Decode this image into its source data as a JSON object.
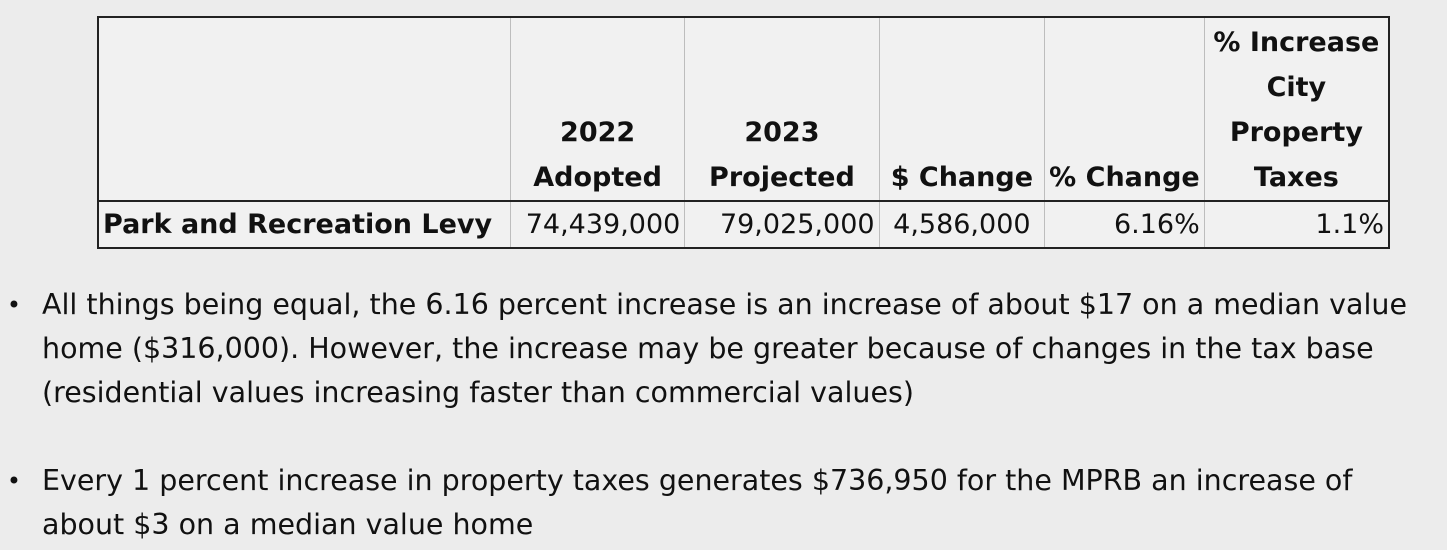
{
  "table": {
    "headers": {
      "label": "",
      "col_2022": [
        "2022",
        "Adopted"
      ],
      "col_2023": [
        "2023",
        "Projected"
      ],
      "dollar_change": "$ Change",
      "pct_change": "% Change",
      "city_tax": [
        "% Increase",
        "City",
        "Property",
        "Taxes"
      ]
    },
    "row": {
      "label": "Park and Recreation Levy",
      "adopted_2022": "74,439,000",
      "projected_2023": "79,025,000",
      "dollar_change": "4,586,000",
      "pct_change": "6.16%",
      "city_tax_increase": "1.1%"
    }
  },
  "bullets": [
    {
      "symbol": "•",
      "text": "All things being equal, the 6.16 percent increase is an increase of about $17 on a median value home ($316,000).  However, the increase may be greater because of changes in the tax base (residential values increasing faster than commercial values)"
    },
    {
      "symbol": "•",
      "text": "Every 1 percent increase in property taxes generates $736,950 for the MPRB an increase of about $3 on a median value home"
    }
  ]
}
